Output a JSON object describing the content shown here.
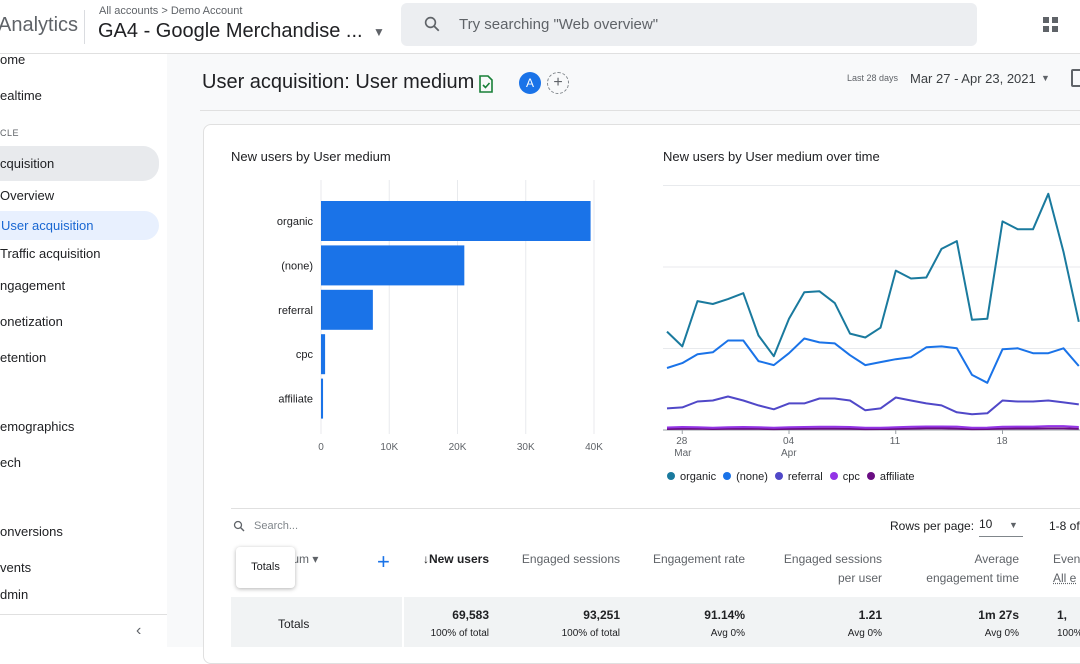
{
  "header": {
    "brand": "Analytics",
    "breadcrumb": "All accounts > Demo Account",
    "property": "GA4 - Google Merchandise ...",
    "search_placeholder": "Try searching \"Web overview\""
  },
  "sidebar": {
    "items": [
      {
        "label": "ome"
      },
      {
        "label": "ealtime"
      },
      {
        "label": "CLE"
      },
      {
        "label": "cquisition"
      },
      {
        "label": "Overview"
      },
      {
        "label": "User acquisition"
      },
      {
        "label": "Traffic acquisition"
      },
      {
        "label": "ngagement"
      },
      {
        "label": "onetization"
      },
      {
        "label": "etention"
      },
      {
        "label": "emographics"
      },
      {
        "label": "ech"
      },
      {
        "label": "onversions"
      },
      {
        "label": "vents"
      },
      {
        "label": "dmin"
      }
    ]
  },
  "page": {
    "title": "User acquisition: User medium",
    "avatar_letter": "A",
    "date_label": "Last 28 days",
    "date_range": "Mar 27 - Apr 23, 2021"
  },
  "colors": {
    "organic": "#1a7a9e",
    "none": "#1a73e8",
    "referral": "#5048c8",
    "cpc": "#9334e6",
    "affiliate": "#6a0d83",
    "bar": "#1a73e8"
  },
  "chart_data": [
    {
      "type": "bar",
      "orientation": "horizontal",
      "title": "New users by User medium",
      "categories": [
        "organic",
        "(none)",
        "referral",
        "cpc",
        "affiliate"
      ],
      "values": [
        39500,
        21000,
        7600,
        600,
        300
      ],
      "xlim": [
        0,
        40000
      ],
      "xticks": [
        "0",
        "10K",
        "20K",
        "30K",
        "40K"
      ],
      "grid": true
    },
    {
      "type": "line",
      "title": "New users by User medium over time",
      "x": [
        "Mar 27",
        "Mar 28",
        "Mar 29",
        "Mar 30",
        "Mar 31",
        "Apr 1",
        "Apr 2",
        "Apr 3",
        "Apr 4",
        "Apr 5",
        "Apr 6",
        "Apr 7",
        "Apr 8",
        "Apr 9",
        "Apr 10",
        "Apr 11",
        "Apr 12",
        "Apr 13",
        "Apr 14",
        "Apr 15",
        "Apr 16",
        "Apr 17",
        "Apr 18",
        "Apr 19",
        "Apr 20",
        "Apr 21",
        "Apr 22",
        "Apr 23"
      ],
      "xticks": [
        {
          "day": "28",
          "month": "Mar",
          "index": 1
        },
        {
          "day": "04",
          "month": "Apr",
          "index": 8
        },
        {
          "day": "11",
          "month": "",
          "index": 15
        },
        {
          "day": "18",
          "month": "",
          "index": 22
        }
      ],
      "ylim": [
        0,
        2500
      ],
      "series": [
        {
          "name": "organic",
          "values": [
            1000,
            850,
            1310,
            1280,
            1330,
            1390,
            960,
            750,
            1130,
            1400,
            1410,
            1290,
            980,
            940,
            1040,
            1620,
            1540,
            1550,
            1840,
            1920,
            1120,
            1130,
            2120,
            2040,
            2040,
            2400,
            1810,
            1100
          ]
        },
        {
          "name": "(none)",
          "values": [
            630,
            680,
            770,
            790,
            910,
            910,
            700,
            660,
            780,
            930,
            890,
            880,
            760,
            660,
            690,
            720,
            740,
            840,
            850,
            830,
            560,
            480,
            820,
            830,
            780,
            780,
            830,
            650
          ]
        },
        {
          "name": "referral",
          "values": [
            220,
            230,
            290,
            300,
            340,
            300,
            250,
            210,
            270,
            270,
            320,
            320,
            300,
            200,
            220,
            330,
            300,
            270,
            250,
            180,
            160,
            170,
            300,
            290,
            290,
            300,
            280,
            260
          ]
        },
        {
          "name": "cpc",
          "values": [
            25,
            30,
            28,
            22,
            28,
            30,
            28,
            22,
            28,
            30,
            33,
            34,
            30,
            22,
            22,
            27,
            33,
            36,
            36,
            35,
            22,
            24,
            33,
            35,
            35,
            40,
            40,
            30
          ]
        },
        {
          "name": "affiliate",
          "values": [
            10,
            12,
            14,
            10,
            12,
            12,
            12,
            9,
            11,
            12,
            14,
            14,
            12,
            9,
            10,
            11,
            14,
            16,
            16,
            14,
            9,
            10,
            14,
            15,
            15,
            16,
            16,
            12
          ]
        }
      ],
      "legend": [
        "organic",
        "(none)",
        "referral",
        "cpc",
        "affiliate"
      ],
      "legend_position": "bottom"
    }
  ],
  "table": {
    "search_placeholder": "Search...",
    "rows_per_page_label": "Rows per page:",
    "rows_per_page_value": "10",
    "pager": "1-8 of",
    "dimension_header": "dium",
    "tooltip": "Totals",
    "columns": [
      {
        "line1": "↓New users",
        "line2": ""
      },
      {
        "line1": "Engaged sessions",
        "line2": ""
      },
      {
        "line1": "Engagement rate",
        "line2": ""
      },
      {
        "line1": "Engaged sessions",
        "line2": "per user"
      },
      {
        "line1": "Average",
        "line2": "engagement time"
      },
      {
        "line1": "Even",
        "line2": "All e"
      }
    ],
    "totals_label": "Totals",
    "totals": [
      {
        "value": "69,583",
        "sub": "100% of total"
      },
      {
        "value": "93,251",
        "sub": "100% of total"
      },
      {
        "value": "91.14%",
        "sub": "Avg 0%"
      },
      {
        "value": "1.21",
        "sub": "Avg 0%"
      },
      {
        "value": "1m 27s",
        "sub": "Avg 0%"
      },
      {
        "value": "1,",
        "sub": "100%"
      }
    ]
  }
}
